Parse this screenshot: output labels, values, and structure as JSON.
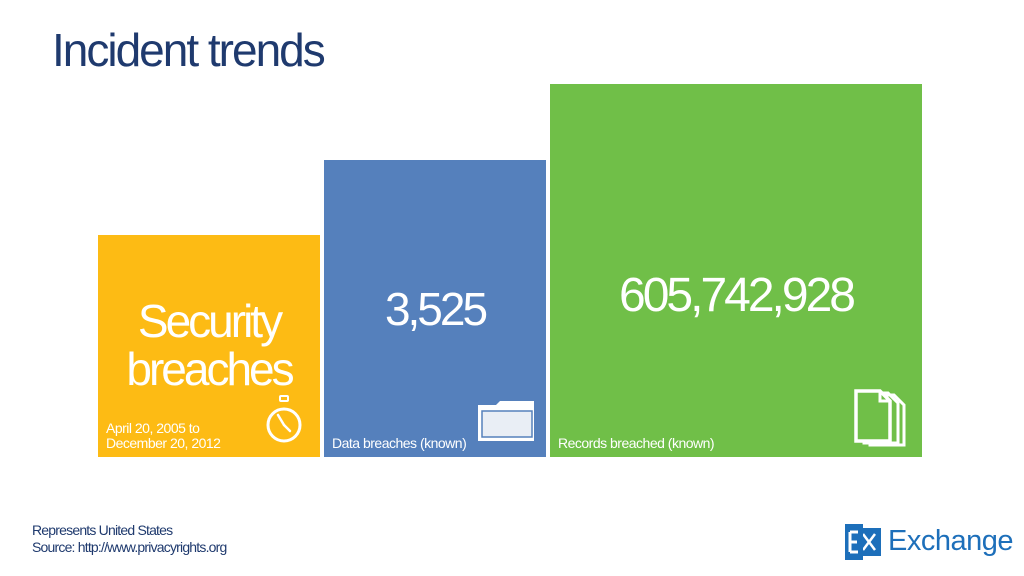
{
  "slide": {
    "title": "Incident trends"
  },
  "tiles": [
    {
      "value_line1": "Security",
      "value_line2": "breaches",
      "caption_line1": "April 20, 2005 to",
      "caption_line2": "December 20, 2012",
      "color": "#fdbb14",
      "icon": "stopwatch-icon"
    },
    {
      "value": "3,525",
      "caption": "Data breaches (known)",
      "color": "#5580bc",
      "icon": "folder-icon"
    },
    {
      "value": "605,742,928",
      "caption": "Records breached (known)",
      "color": "#70bf48",
      "icon": "documents-icon"
    }
  ],
  "footer": {
    "line1": "Represents United States",
    "line2": "Source: http://www.privacyrights.org"
  },
  "logo": {
    "text": "Exchange",
    "color": "#1d6fba",
    "icon": "exchange-logo-icon"
  }
}
